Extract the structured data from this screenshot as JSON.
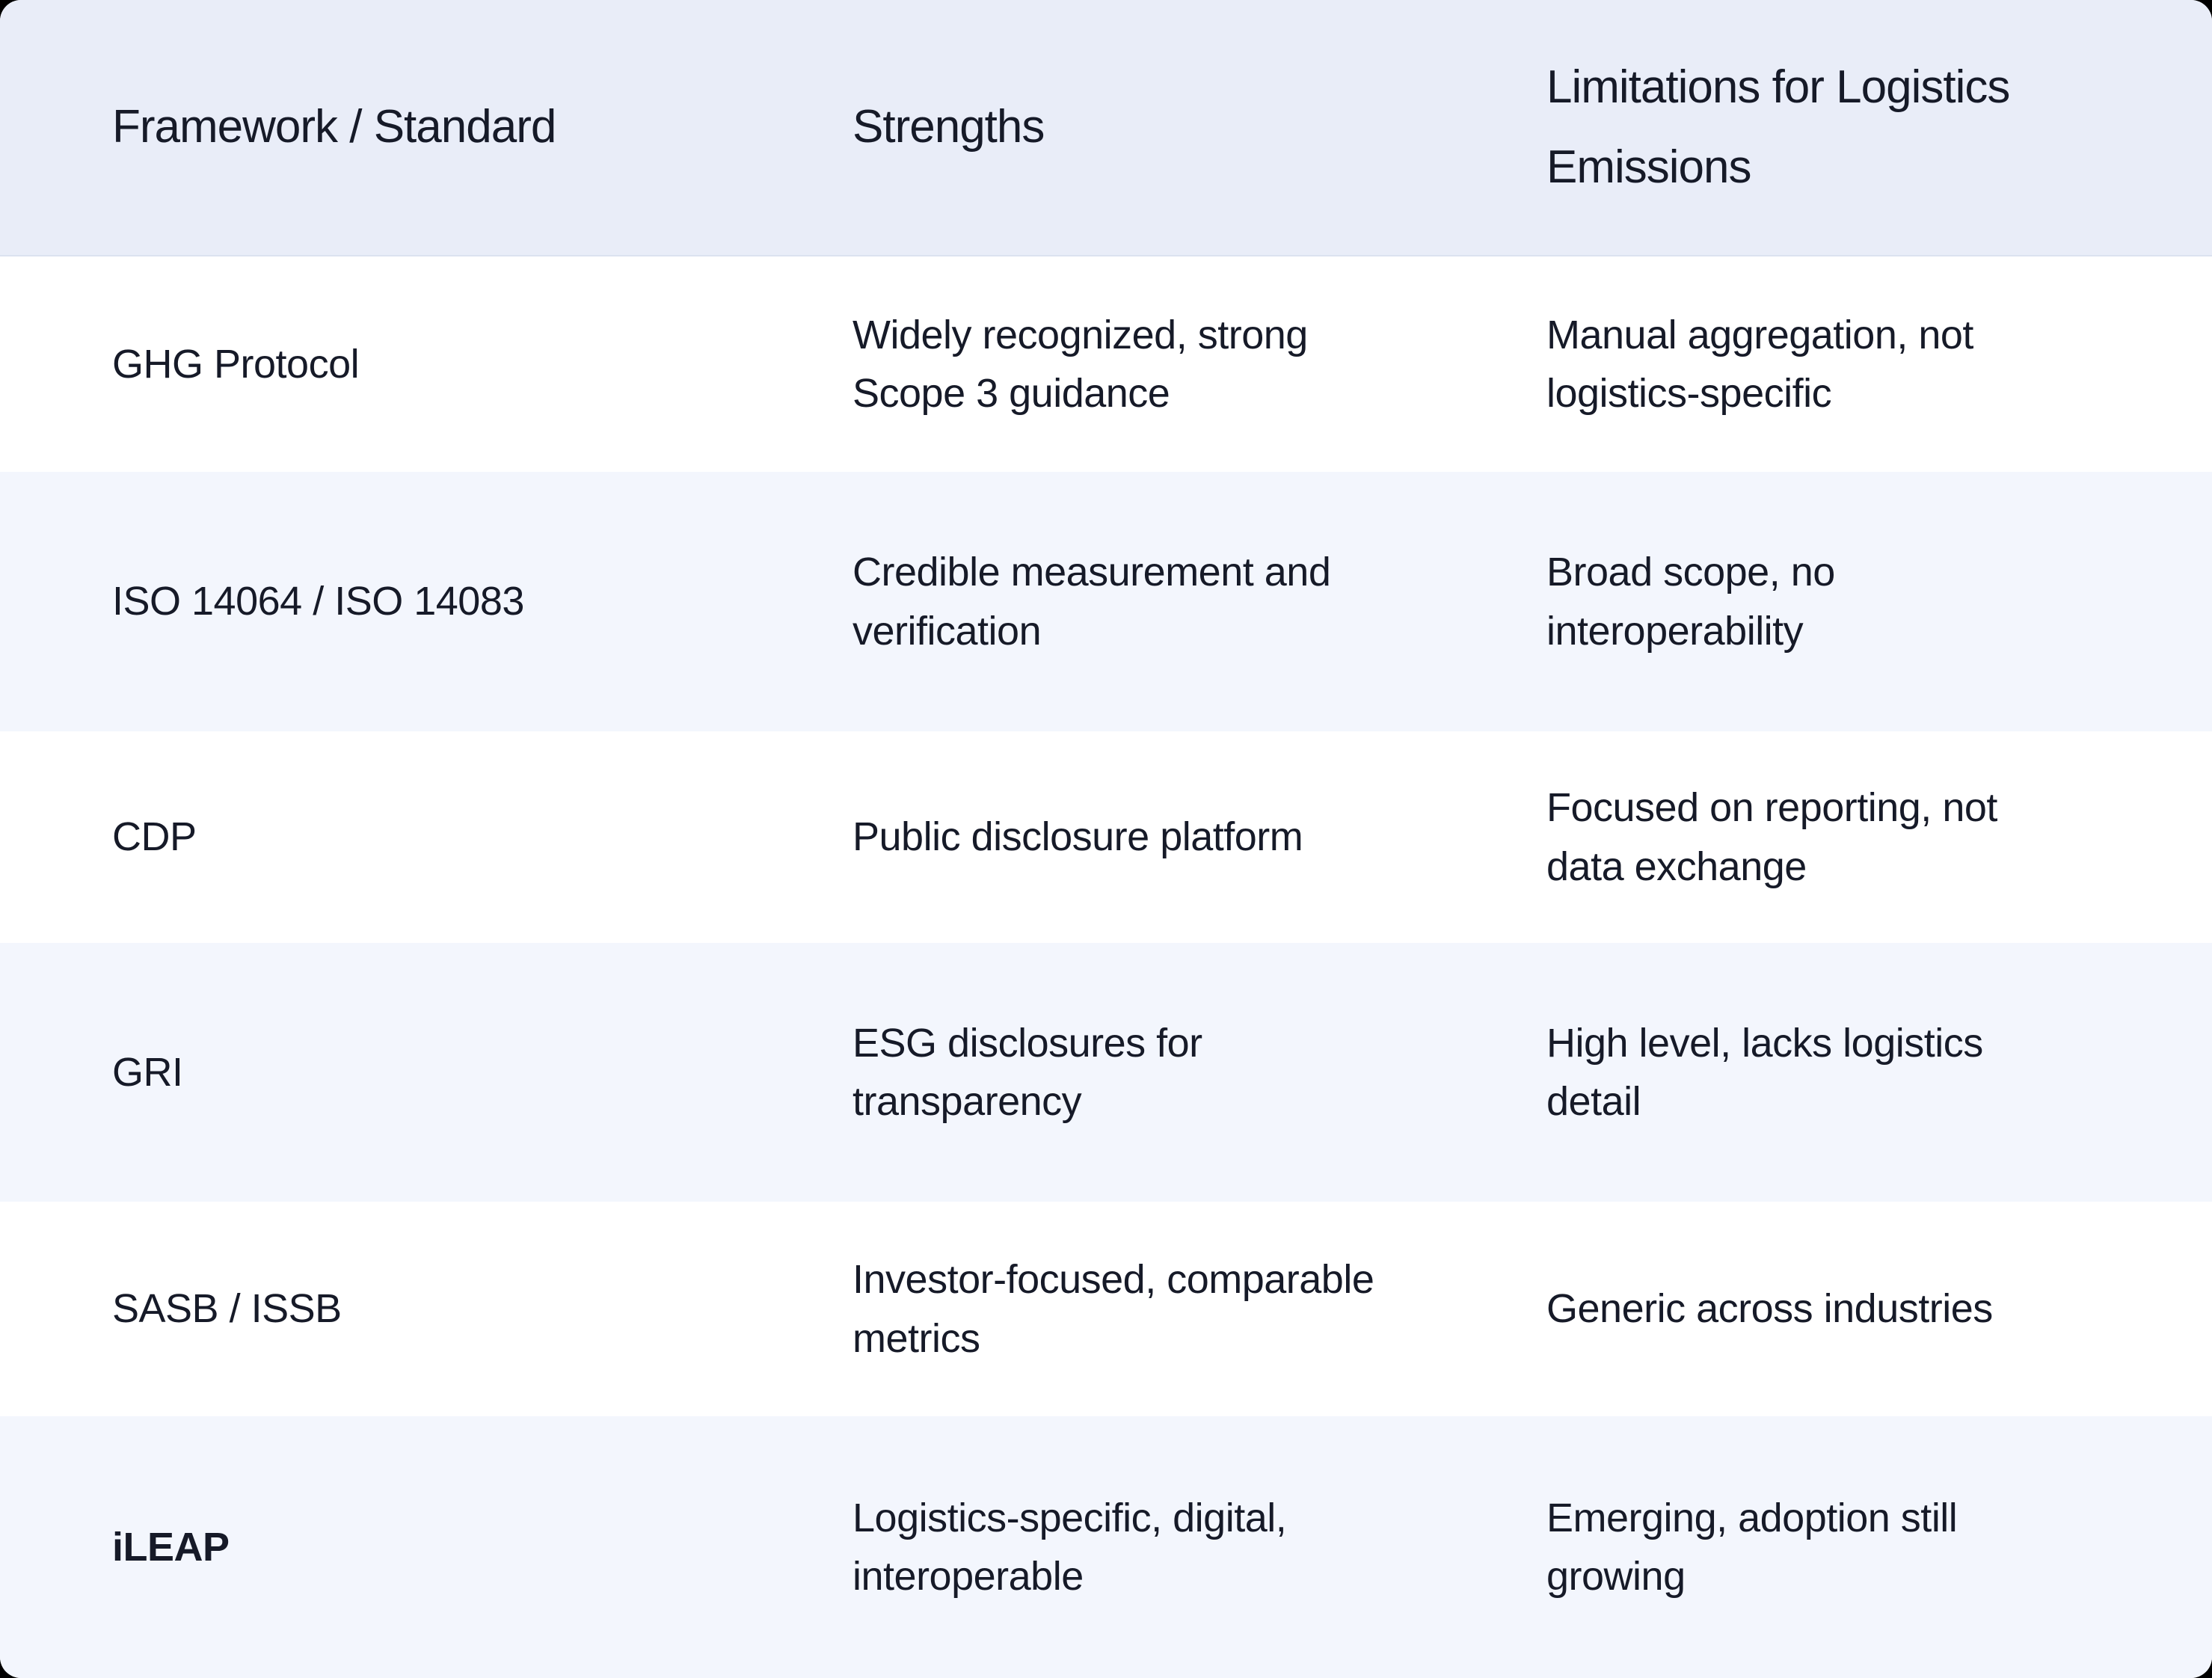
{
  "colors": {
    "page_background": "#000000",
    "header_background": "#e9edf8",
    "row_background": "#ffffff",
    "row_alt_background": "#f3f6fd",
    "header_divider": "#dce2f0",
    "text": "#161a28"
  },
  "table": {
    "columns": [
      "Framework / Standard",
      "Strengths",
      "Limitations for Logistics Emissions"
    ],
    "rows": [
      {
        "framework": "GHG Protocol",
        "strengths": "Widely recognized, strong Scope 3 guidance",
        "limitations": "Manual aggregation, not logistics-specific",
        "emphasis": "none"
      },
      {
        "framework": "ISO 14064 / ISO 14083",
        "strengths": "Credible measurement and verification",
        "limitations": "Broad scope, no interoperability",
        "emphasis": "none"
      },
      {
        "framework": "CDP",
        "strengths": "Public disclosure platform",
        "limitations": "Focused on reporting, not data exchange",
        "emphasis": "none"
      },
      {
        "framework": "GRI",
        "strengths": "ESG disclosures for transparency",
        "limitations": "High level, lacks logistics detail",
        "emphasis": "none"
      },
      {
        "framework": "SASB / ISSB",
        "strengths": "Investor-focused, comparable metrics",
        "limitations": "Generic across industries",
        "emphasis": "none"
      },
      {
        "framework": "iLEAP",
        "strengths": "Logistics-specific, digital, interoperable",
        "limitations": "Emerging, adoption still growing",
        "emphasis": "bold"
      }
    ]
  }
}
